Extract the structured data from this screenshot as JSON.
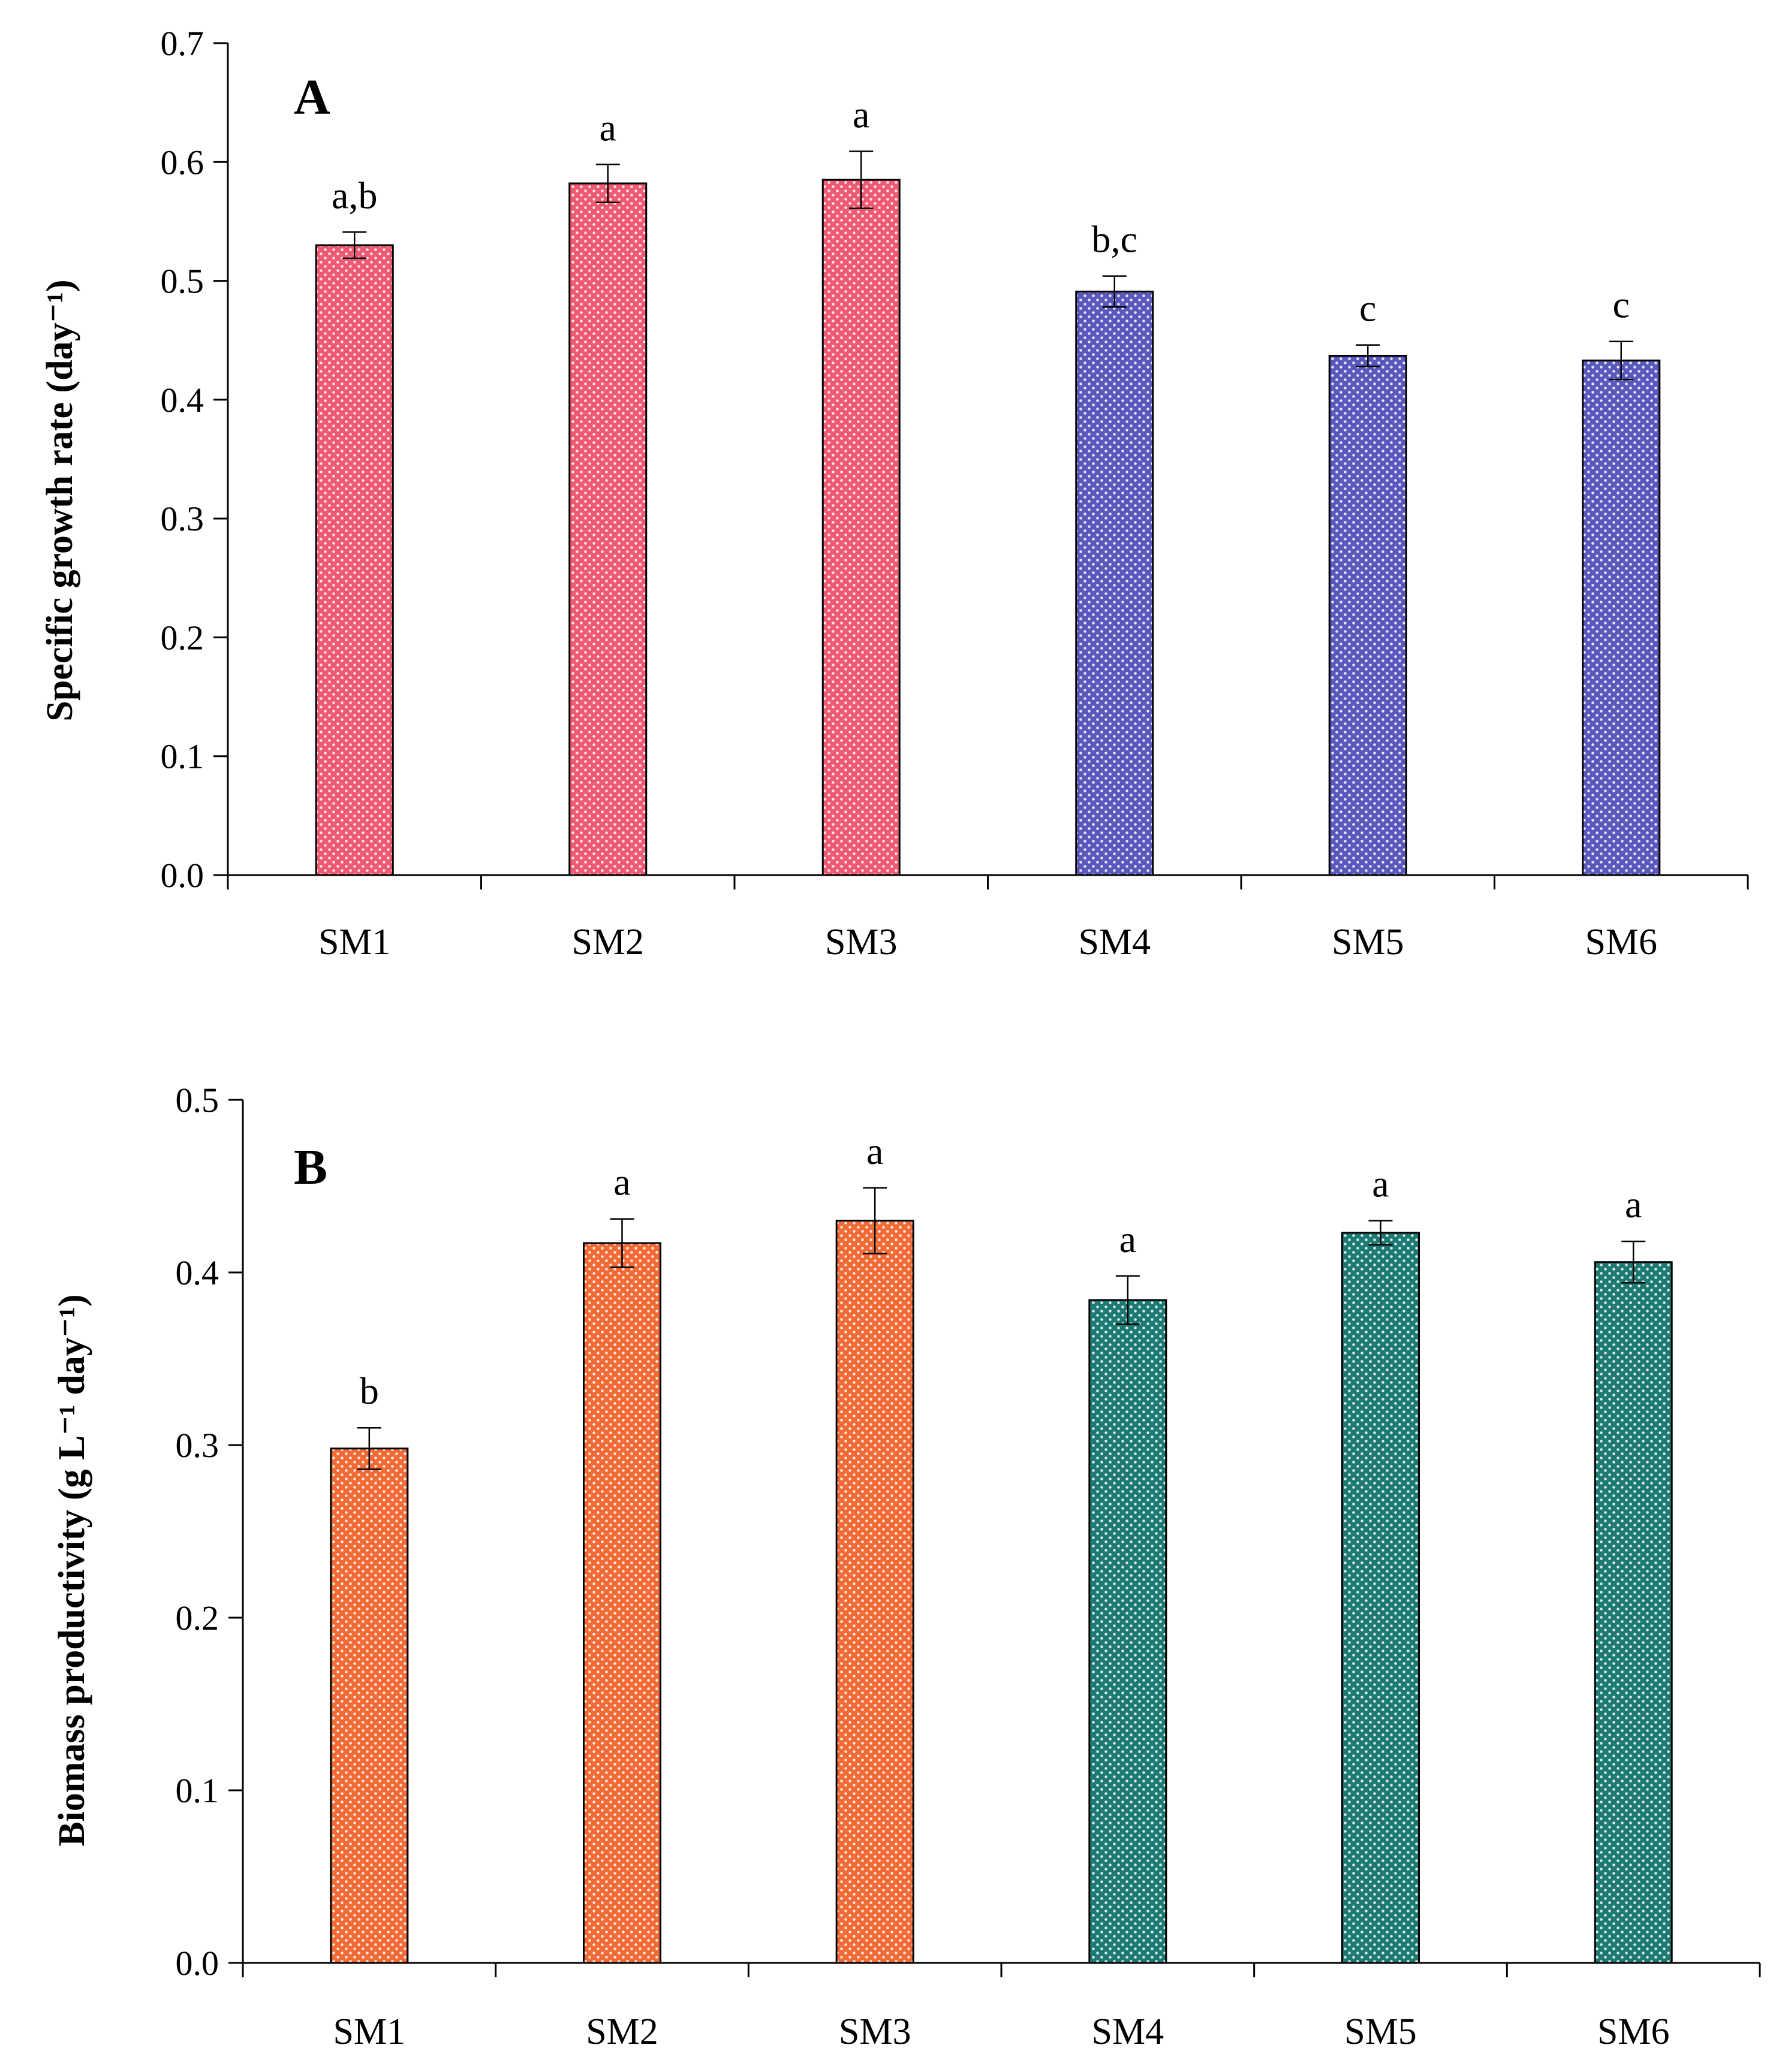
{
  "chart_data": [
    {
      "type": "bar",
      "panel_label": "A",
      "title": "",
      "xlabel": "",
      "ylabel": "Specific growth rate (day⁻¹)",
      "ylim": [
        0,
        0.7
      ],
      "yticks": [
        "0.0",
        "0.1",
        "0.2",
        "0.3",
        "0.4",
        "0.5",
        "0.6",
        "0.7"
      ],
      "grid": false,
      "categories": [
        "SM1",
        "SM2",
        "SM3",
        "SM4",
        "SM5",
        "SM6"
      ],
      "values": [
        0.53,
        0.582,
        0.585,
        0.491,
        0.437,
        0.433
      ],
      "errors": [
        0.011,
        0.016,
        0.024,
        0.013,
        0.009,
        0.016
      ],
      "significance_labels": [
        "a,b",
        "a",
        "a",
        "b,c",
        "c",
        "c"
      ],
      "colors": [
        "#ee5a72",
        "#ee5a72",
        "#ee5a72",
        "#5858bd",
        "#5858bd",
        "#5858bd"
      ]
    },
    {
      "type": "bar",
      "panel_label": "B",
      "title": "",
      "xlabel": "",
      "ylabel": "Biomass productivity (g L⁻¹ day⁻¹)",
      "ylim": [
        0,
        0.5
      ],
      "yticks": [
        "0.0",
        "0.1",
        "0.2",
        "0.3",
        "0.4",
        "0.5"
      ],
      "grid": false,
      "categories": [
        "SM1",
        "SM2",
        "SM3",
        "SM4",
        "SM5",
        "SM6"
      ],
      "values": [
        0.298,
        0.417,
        0.43,
        0.384,
        0.423,
        0.406
      ],
      "errors": [
        0.012,
        0.014,
        0.019,
        0.014,
        0.007,
        0.012
      ],
      "significance_labels": [
        "b",
        "a",
        "a",
        "a",
        "a",
        "a"
      ],
      "colors": [
        "#f26a35",
        "#f26a35",
        "#f26a35",
        "#1d7a72",
        "#1d7a72",
        "#1d7a72"
      ]
    }
  ]
}
